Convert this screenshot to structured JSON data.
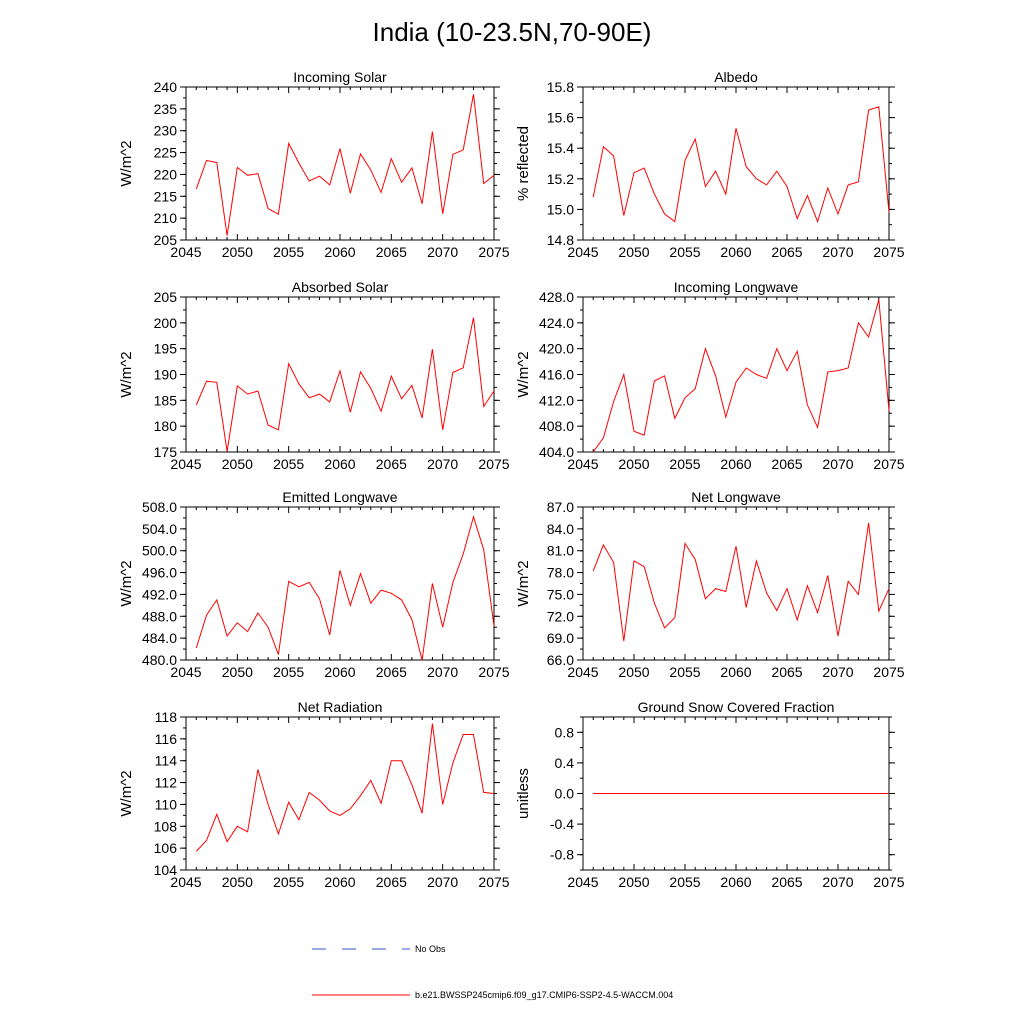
{
  "figure_title": "India (10-23.5N,70-90E)",
  "colors": {
    "model": "#ff0000",
    "obs": "#3355cc",
    "axis": "#000000"
  },
  "legend": {
    "obs_label": "No Obs",
    "model_label": "b.e21.BWSSP245cmip6.f09_g17.CMIP6-SSP2-4.5-WACCM.004"
  },
  "chart_data": [
    {
      "type": "line",
      "title": "Incoming Solar",
      "ylabel": "W/m^2",
      "xlabel": "",
      "xlim": [
        2045,
        2075
      ],
      "ylim": [
        205,
        240
      ],
      "xticks": [
        2045,
        2050,
        2055,
        2060,
        2065,
        2070,
        2075
      ],
      "yticks": [
        205,
        210,
        215,
        220,
        225,
        230,
        235,
        240
      ],
      "ytick_labels": [
        "205",
        "210",
        "215",
        "220",
        "225",
        "230",
        "235",
        "240"
      ],
      "x": [
        2046,
        2047,
        2048,
        2049,
        2050,
        2051,
        2052,
        2053,
        2054,
        2055,
        2056,
        2057,
        2058,
        2059,
        2060,
        2061,
        2062,
        2063,
        2064,
        2065,
        2066,
        2067,
        2068,
        2069,
        2070,
        2071,
        2072,
        2073,
        2074,
        2075
      ],
      "series": [
        {
          "name": "b.e21.BWSSP245cmip6.f09_g17.CMIP6-SSP2-4.5-WACCM.004",
          "values": [
            216.7,
            223.2,
            222.7,
            206.0,
            221.6,
            219.8,
            220.2,
            212.2,
            210.9,
            227.1,
            222.6,
            218.5,
            219.6,
            217.6,
            225.9,
            215.7,
            224.7,
            221.0,
            215.9,
            223.6,
            218.2,
            221.5,
            213.3,
            229.8,
            211.0,
            224.6,
            225.6,
            238.3,
            217.9,
            219.8
          ]
        }
      ]
    },
    {
      "type": "line",
      "title": "Albedo",
      "ylabel": "% reflected",
      "xlabel": "",
      "xlim": [
        2045,
        2075
      ],
      "ylim": [
        14.8,
        15.8
      ],
      "xticks": [
        2045,
        2050,
        2055,
        2060,
        2065,
        2070,
        2075
      ],
      "yticks": [
        14.8,
        15.0,
        15.2,
        15.4,
        15.6,
        15.8
      ],
      "ytick_labels": [
        "14.8",
        "15.0",
        "15.2",
        "15.4",
        "15.6",
        "15.8"
      ],
      "x": [
        2046,
        2047,
        2048,
        2049,
        2050,
        2051,
        2052,
        2053,
        2054,
        2055,
        2056,
        2057,
        2058,
        2059,
        2060,
        2061,
        2062,
        2063,
        2064,
        2065,
        2066,
        2067,
        2068,
        2069,
        2070,
        2071,
        2072,
        2073,
        2074,
        2075
      ],
      "series": [
        {
          "name": "b.e21.BWSSP245cmip6.f09_g17.CMIP6-SSP2-4.5-WACCM.004",
          "values": [
            15.08,
            15.41,
            15.35,
            14.96,
            15.24,
            15.27,
            15.1,
            14.97,
            14.92,
            15.32,
            15.46,
            15.15,
            15.25,
            15.1,
            15.53,
            15.28,
            15.2,
            15.16,
            15.25,
            15.15,
            14.94,
            15.09,
            14.92,
            15.14,
            14.97,
            15.16,
            15.18,
            15.65,
            15.67,
            14.98
          ]
        }
      ]
    },
    {
      "type": "line",
      "title": "Absorbed Solar",
      "ylabel": "W/m^2",
      "xlabel": "",
      "xlim": [
        2045,
        2075
      ],
      "ylim": [
        175,
        205
      ],
      "xticks": [
        2045,
        2050,
        2055,
        2060,
        2065,
        2070,
        2075
      ],
      "yticks": [
        175,
        180,
        185,
        190,
        195,
        200,
        205
      ],
      "ytick_labels": [
        "175",
        "180",
        "185",
        "190",
        "195",
        "200",
        "205"
      ],
      "x": [
        2046,
        2047,
        2048,
        2049,
        2050,
        2051,
        2052,
        2053,
        2054,
        2055,
        2056,
        2057,
        2058,
        2059,
        2060,
        2061,
        2062,
        2063,
        2064,
        2065,
        2066,
        2067,
        2068,
        2069,
        2070,
        2071,
        2072,
        2073,
        2074,
        2075
      ],
      "series": [
        {
          "name": "b.e21.BWSSP245cmip6.f09_g17.CMIP6-SSP2-4.5-WACCM.004",
          "values": [
            184.1,
            188.7,
            188.5,
            175.1,
            187.8,
            186.2,
            186.8,
            180.2,
            179.3,
            192.1,
            188.2,
            185.5,
            186.2,
            184.7,
            190.7,
            182.7,
            190.5,
            187.3,
            182.9,
            189.7,
            185.3,
            187.9,
            181.6,
            194.9,
            179.3,
            190.4,
            191.3,
            201.0,
            183.8,
            186.8
          ]
        }
      ]
    },
    {
      "type": "line",
      "title": "Incoming Longwave",
      "ylabel": "W/m^2",
      "xlabel": "",
      "xlim": [
        2045,
        2075
      ],
      "ylim": [
        404,
        428
      ],
      "xticks": [
        2045,
        2050,
        2055,
        2060,
        2065,
        2070,
        2075
      ],
      "yticks": [
        404,
        408,
        412,
        416,
        420,
        424,
        428
      ],
      "ytick_labels": [
        "404.0",
        "408.0",
        "412.0",
        "416.0",
        "420.0",
        "424.0",
        "428.0"
      ],
      "x": [
        2046,
        2047,
        2048,
        2049,
        2050,
        2051,
        2052,
        2053,
        2054,
        2055,
        2056,
        2057,
        2058,
        2059,
        2060,
        2061,
        2062,
        2063,
        2064,
        2065,
        2066,
        2067,
        2068,
        2069,
        2070,
        2071,
        2072,
        2073,
        2074,
        2075
      ],
      "series": [
        {
          "name": "b.e21.BWSSP245cmip6.f09_g17.CMIP6-SSP2-4.5-WACCM.004",
          "values": [
            404.0,
            406.2,
            411.8,
            416.0,
            407.2,
            406.6,
            415.0,
            415.8,
            409.2,
            412.4,
            413.8,
            420.0,
            415.8,
            409.4,
            414.8,
            417.0,
            416.0,
            415.4,
            420.0,
            416.6,
            419.6,
            411.3,
            407.8,
            416.4,
            416.6,
            417.0,
            424.0,
            421.8,
            427.6,
            410.4
          ]
        }
      ]
    },
    {
      "type": "line",
      "title": "Emitted Longwave",
      "ylabel": "W/m^2",
      "xlabel": "",
      "xlim": [
        2045,
        2075
      ],
      "ylim": [
        480,
        508
      ],
      "xticks": [
        2045,
        2050,
        2055,
        2060,
        2065,
        2070,
        2075
      ],
      "yticks": [
        480,
        484,
        488,
        492,
        496,
        500,
        504,
        508
      ],
      "ytick_labels": [
        "480.0",
        "484.0",
        "488.0",
        "492.0",
        "496.0",
        "500.0",
        "504.0",
        "508.0"
      ],
      "x": [
        2046,
        2047,
        2048,
        2049,
        2050,
        2051,
        2052,
        2053,
        2054,
        2055,
        2056,
        2057,
        2058,
        2059,
        2060,
        2061,
        2062,
        2063,
        2064,
        2065,
        2066,
        2067,
        2068,
        2069,
        2070,
        2071,
        2072,
        2073,
        2074,
        2075
      ],
      "series": [
        {
          "name": "b.e21.BWSSP245cmip6.f09_g17.CMIP6-SSP2-4.5-WACCM.004",
          "values": [
            482.2,
            488.2,
            491.0,
            484.4,
            486.8,
            485.2,
            488.6,
            486.0,
            481.0,
            494.4,
            493.4,
            494.2,
            491.2,
            484.6,
            496.4,
            490.0,
            495.8,
            490.4,
            492.8,
            492.2,
            491.0,
            487.4,
            480.0,
            494.0,
            486.0,
            494.2,
            499.4,
            506.2,
            500.2,
            486.2
          ]
        }
      ]
    },
    {
      "type": "line",
      "title": "Net Longwave",
      "ylabel": "W/m^2",
      "xlabel": "",
      "xlim": [
        2045,
        2075
      ],
      "ylim": [
        66,
        87
      ],
      "xticks": [
        2045,
        2050,
        2055,
        2060,
        2065,
        2070,
        2075
      ],
      "yticks": [
        66,
        69,
        72,
        75,
        78,
        81,
        84,
        87
      ],
      "ytick_labels": [
        "66.0",
        "69.0",
        "72.0",
        "75.0",
        "78.0",
        "81.0",
        "84.0",
        "87.0"
      ],
      "x": [
        2046,
        2047,
        2048,
        2049,
        2050,
        2051,
        2052,
        2053,
        2054,
        2055,
        2056,
        2057,
        2058,
        2059,
        2060,
        2061,
        2062,
        2063,
        2064,
        2065,
        2066,
        2067,
        2068,
        2069,
        2070,
        2071,
        2072,
        2073,
        2074,
        2075
      ],
      "series": [
        {
          "name": "b.e21.BWSSP245cmip6.f09_g17.CMIP6-SSP2-4.5-WACCM.004",
          "values": [
            78.2,
            81.8,
            79.4,
            68.6,
            79.6,
            78.8,
            73.8,
            70.4,
            71.8,
            82.0,
            79.8,
            74.4,
            75.8,
            75.4,
            81.6,
            73.2,
            79.6,
            75.2,
            72.8,
            75.8,
            71.5,
            76.2,
            72.5,
            77.6,
            69.3,
            76.8,
            75.0,
            84.8,
            72.7,
            75.8
          ]
        }
      ]
    },
    {
      "type": "line",
      "title": "Net Radiation",
      "ylabel": "W/m^2",
      "xlabel": "",
      "xlim": [
        2045,
        2075
      ],
      "ylim": [
        104,
        118
      ],
      "xticks": [
        2045,
        2050,
        2055,
        2060,
        2065,
        2070,
        2075
      ],
      "yticks": [
        104,
        106,
        108,
        110,
        112,
        114,
        116,
        118
      ],
      "ytick_labels": [
        "104",
        "106",
        "108",
        "110",
        "112",
        "114",
        "116",
        "118"
      ],
      "x": [
        2046,
        2047,
        2048,
        2049,
        2050,
        2051,
        2052,
        2053,
        2054,
        2055,
        2056,
        2057,
        2058,
        2059,
        2060,
        2061,
        2062,
        2063,
        2064,
        2065,
        2066,
        2067,
        2068,
        2069,
        2070,
        2071,
        2072,
        2073,
        2074,
        2075
      ],
      "series": [
        {
          "name": "b.e21.BWSSP245cmip6.f09_g17.CMIP6-SSP2-4.5-WACCM.004",
          "values": [
            105.7,
            106.7,
            109.1,
            106.6,
            108.0,
            107.5,
            113.2,
            110.0,
            107.3,
            110.2,
            108.6,
            111.1,
            110.4,
            109.4,
            109.0,
            109.6,
            110.8,
            112.2,
            110.1,
            114.0,
            114.0,
            111.8,
            109.2,
            117.4,
            110.0,
            113.8,
            116.4,
            116.4,
            111.1,
            111.0
          ]
        }
      ]
    },
    {
      "type": "line",
      "title": "Ground Snow Covered Fraction",
      "ylabel": "unitless",
      "xlabel": "",
      "xlim": [
        2045,
        2075
      ],
      "ylim": [
        -1.0,
        1.0
      ],
      "xticks": [
        2045,
        2050,
        2055,
        2060,
        2065,
        2070,
        2075
      ],
      "yticks": [
        -0.8,
        -0.4,
        0.0,
        0.4,
        0.8
      ],
      "ytick_labels": [
        "-0.8",
        "-0.4",
        "0.0",
        "0.4",
        "0.8"
      ],
      "x": [
        2046,
        2075
      ],
      "series": [
        {
          "name": "b.e21.BWSSP245cmip6.f09_g17.CMIP6-SSP2-4.5-WACCM.004",
          "values": [
            0.0,
            0.0
          ]
        }
      ]
    }
  ]
}
